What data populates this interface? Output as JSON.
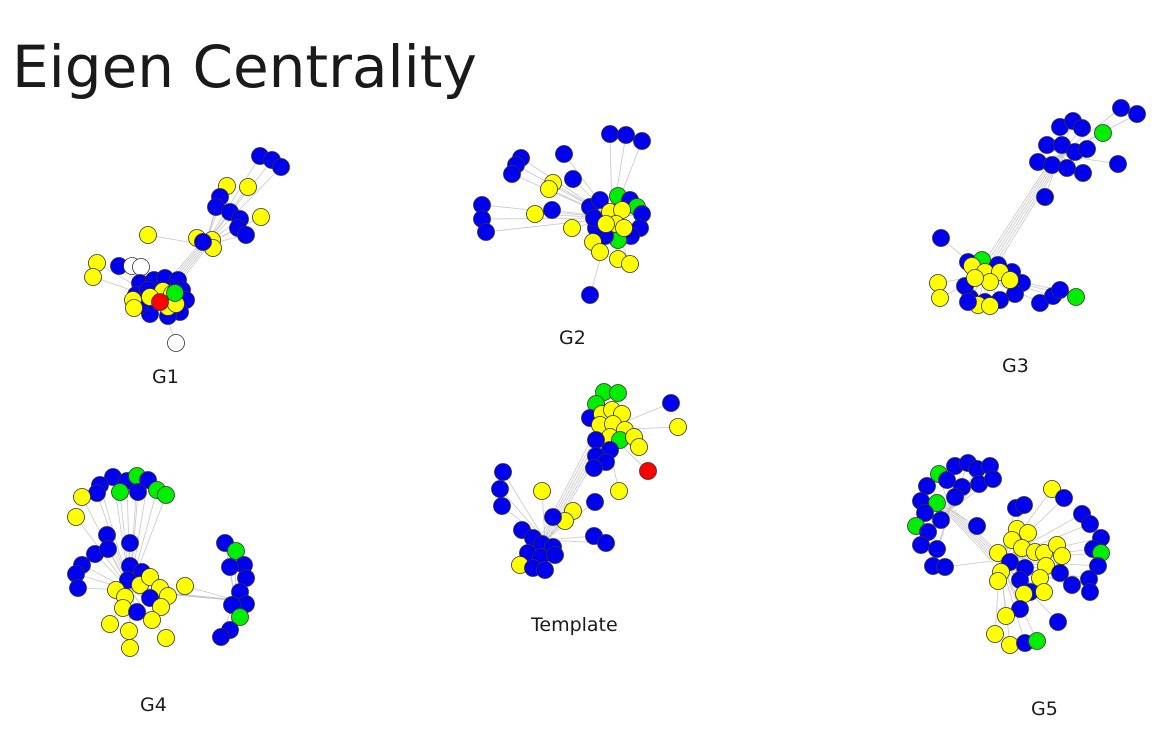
{
  "slide": {
    "title": "Eigen Centrality"
  },
  "legend_colors": {
    "high": "#ffff00",
    "medium": "#00ee00",
    "low": "#0000ee",
    "special": "#ff0000",
    "none": "#ffffff"
  },
  "graphs": [
    {
      "id": "g1",
      "label": "G1"
    },
    {
      "id": "g2",
      "label": "G2"
    },
    {
      "id": "g3",
      "label": "G3"
    },
    {
      "id": "g4",
      "label": "G4"
    },
    {
      "id": "template",
      "label": "Template"
    },
    {
      "id": "g5",
      "label": "G5"
    }
  ]
}
